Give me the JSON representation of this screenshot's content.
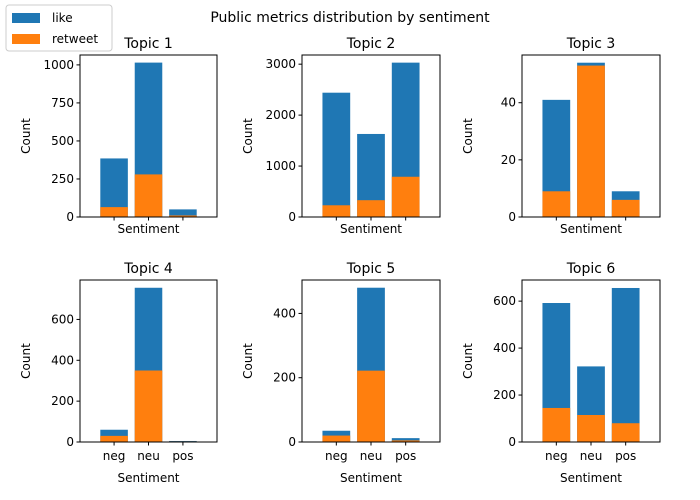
{
  "figure": {
    "title": "Public metrics distribution by sentiment",
    "legend": {
      "placement": "top-left",
      "items": [
        {
          "name": "like",
          "color": "#1f77b4"
        },
        {
          "name": "retweet",
          "color": "#ff7f0e"
        }
      ]
    }
  },
  "chart_data": [
    {
      "type": "bar",
      "title": "Topic 1",
      "xlabel": "Sentiment",
      "ylabel": "Count",
      "categories": [
        "neg",
        "neu",
        "pos"
      ],
      "show_x_tick_labels": false,
      "ylim": [
        0,
        1065
      ],
      "yticks": [
        0,
        250,
        500,
        750,
        1000
      ],
      "series": [
        {
          "name": "like",
          "values": [
            385,
            1015,
            50
          ]
        },
        {
          "name": "retweet",
          "values": [
            65,
            280,
            10
          ]
        }
      ]
    },
    {
      "type": "bar",
      "title": "Topic 2",
      "xlabel": "Sentiment",
      "ylabel": "Count",
      "categories": [
        "neg",
        "neu",
        "pos"
      ],
      "show_x_tick_labels": false,
      "ylim": [
        0,
        3180
      ],
      "yticks": [
        0,
        1000,
        2000,
        3000
      ],
      "series": [
        {
          "name": "like",
          "values": [
            2440,
            1630,
            3030
          ]
        },
        {
          "name": "retweet",
          "values": [
            230,
            330,
            790
          ]
        }
      ]
    },
    {
      "type": "bar",
      "title": "Topic 3",
      "xlabel": "Sentiment",
      "ylabel": "Count",
      "categories": [
        "neg",
        "neu",
        "pos"
      ],
      "show_x_tick_labels": false,
      "ylim": [
        0,
        56.7
      ],
      "yticks": [
        0,
        20,
        40
      ],
      "series": [
        {
          "name": "like",
          "values": [
            41,
            54,
            9
          ]
        },
        {
          "name": "retweet",
          "values": [
            9,
            53,
            6
          ]
        }
      ]
    },
    {
      "type": "bar",
      "title": "Topic 4",
      "xlabel": "Sentiment",
      "ylabel": "Count",
      "categories": [
        "neg",
        "neu",
        "pos"
      ],
      "show_x_tick_labels": true,
      "ylim": [
        0,
        793
      ],
      "yticks": [
        0,
        200,
        400,
        600
      ],
      "series": [
        {
          "name": "like",
          "values": [
            60,
            755,
            5
          ]
        },
        {
          "name": "retweet",
          "values": [
            30,
            350,
            3
          ]
        }
      ]
    },
    {
      "type": "bar",
      "title": "Topic 5",
      "xlabel": "Sentiment",
      "ylabel": "Count",
      "categories": [
        "neg",
        "neu",
        "pos"
      ],
      "show_x_tick_labels": true,
      "ylim": [
        0,
        504
      ],
      "yticks": [
        0,
        200,
        400
      ],
      "series": [
        {
          "name": "like",
          "values": [
            35,
            480,
            12
          ]
        },
        {
          "name": "retweet",
          "values": [
            20,
            222,
            5
          ]
        }
      ]
    },
    {
      "type": "bar",
      "title": "Topic 6",
      "xlabel": "Sentiment",
      "ylabel": "Count",
      "categories": [
        "neg",
        "neu",
        "pos"
      ],
      "show_x_tick_labels": true,
      "ylim": [
        0,
        690
      ],
      "yticks": [
        0,
        200,
        400,
        600
      ],
      "series": [
        {
          "name": "like",
          "values": [
            592,
            322,
            656
          ]
        },
        {
          "name": "retweet",
          "values": [
            145,
            115,
            80
          ]
        }
      ]
    }
  ]
}
